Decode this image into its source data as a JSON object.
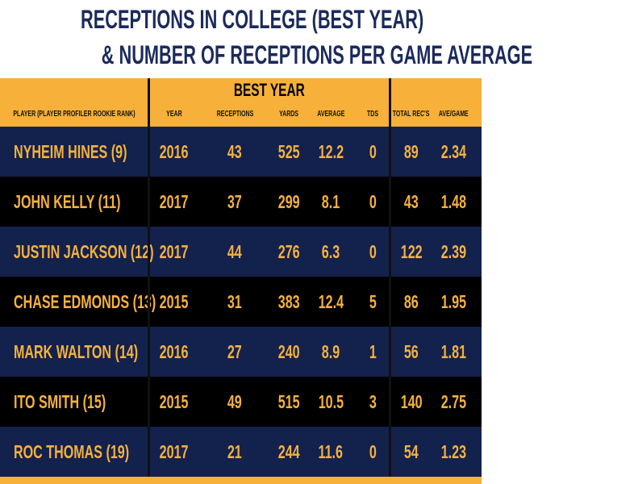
{
  "title": {
    "line1": "RECEPTIONS IN COLLEGE (BEST YEAR)",
    "line2": "& NUMBER OF RECEPTIONS PER GAME AVERAGE"
  },
  "colors": {
    "orange": "#f7b03a",
    "navy": "#13214d",
    "black": "#000000",
    "title": "#1b2a5c"
  },
  "chart_data": {
    "type": "table",
    "title": "RECEPTIONS IN COLLEGE (BEST YEAR) & NUMBER OF RECEPTIONS PER GAME AVERAGE",
    "group_header": "BEST YEAR",
    "columns": [
      "PLAYER (PLAYER PROFILER ROOKIE RANK)",
      "YEAR",
      "RECEPTIONS",
      "YARDS",
      "AVERAGE",
      "TDS",
      "TOTAL REC'S",
      "AVE/GAME"
    ],
    "rows": [
      [
        "NYHEIM HINES (9)",
        "2016",
        "43",
        "525",
        "12.2",
        "0",
        "89",
        "2.34"
      ],
      [
        "JOHN KELLY (11)",
        "2017",
        "37",
        "299",
        "8.1",
        "0",
        "43",
        "1.48"
      ],
      [
        "JUSTIN JACKSON (12)",
        "2017",
        "44",
        "276",
        "6.3",
        "0",
        "122",
        "2.39"
      ],
      [
        "CHASE EDMONDS (13)",
        "2015",
        "31",
        "383",
        "12.4",
        "5",
        "86",
        "1.95"
      ],
      [
        "MARK WALTON  (14)",
        "2016",
        "27",
        "240",
        "8.9",
        "1",
        "56",
        "1.81"
      ],
      [
        "ITO SMITH (15)",
        "2015",
        "49",
        "515",
        "10.5",
        "3",
        "140",
        "2.75"
      ],
      [
        "ROC THOMAS (19)",
        "2017",
        "21",
        "244",
        "11.6",
        "0",
        "54",
        "1.23"
      ]
    ]
  }
}
